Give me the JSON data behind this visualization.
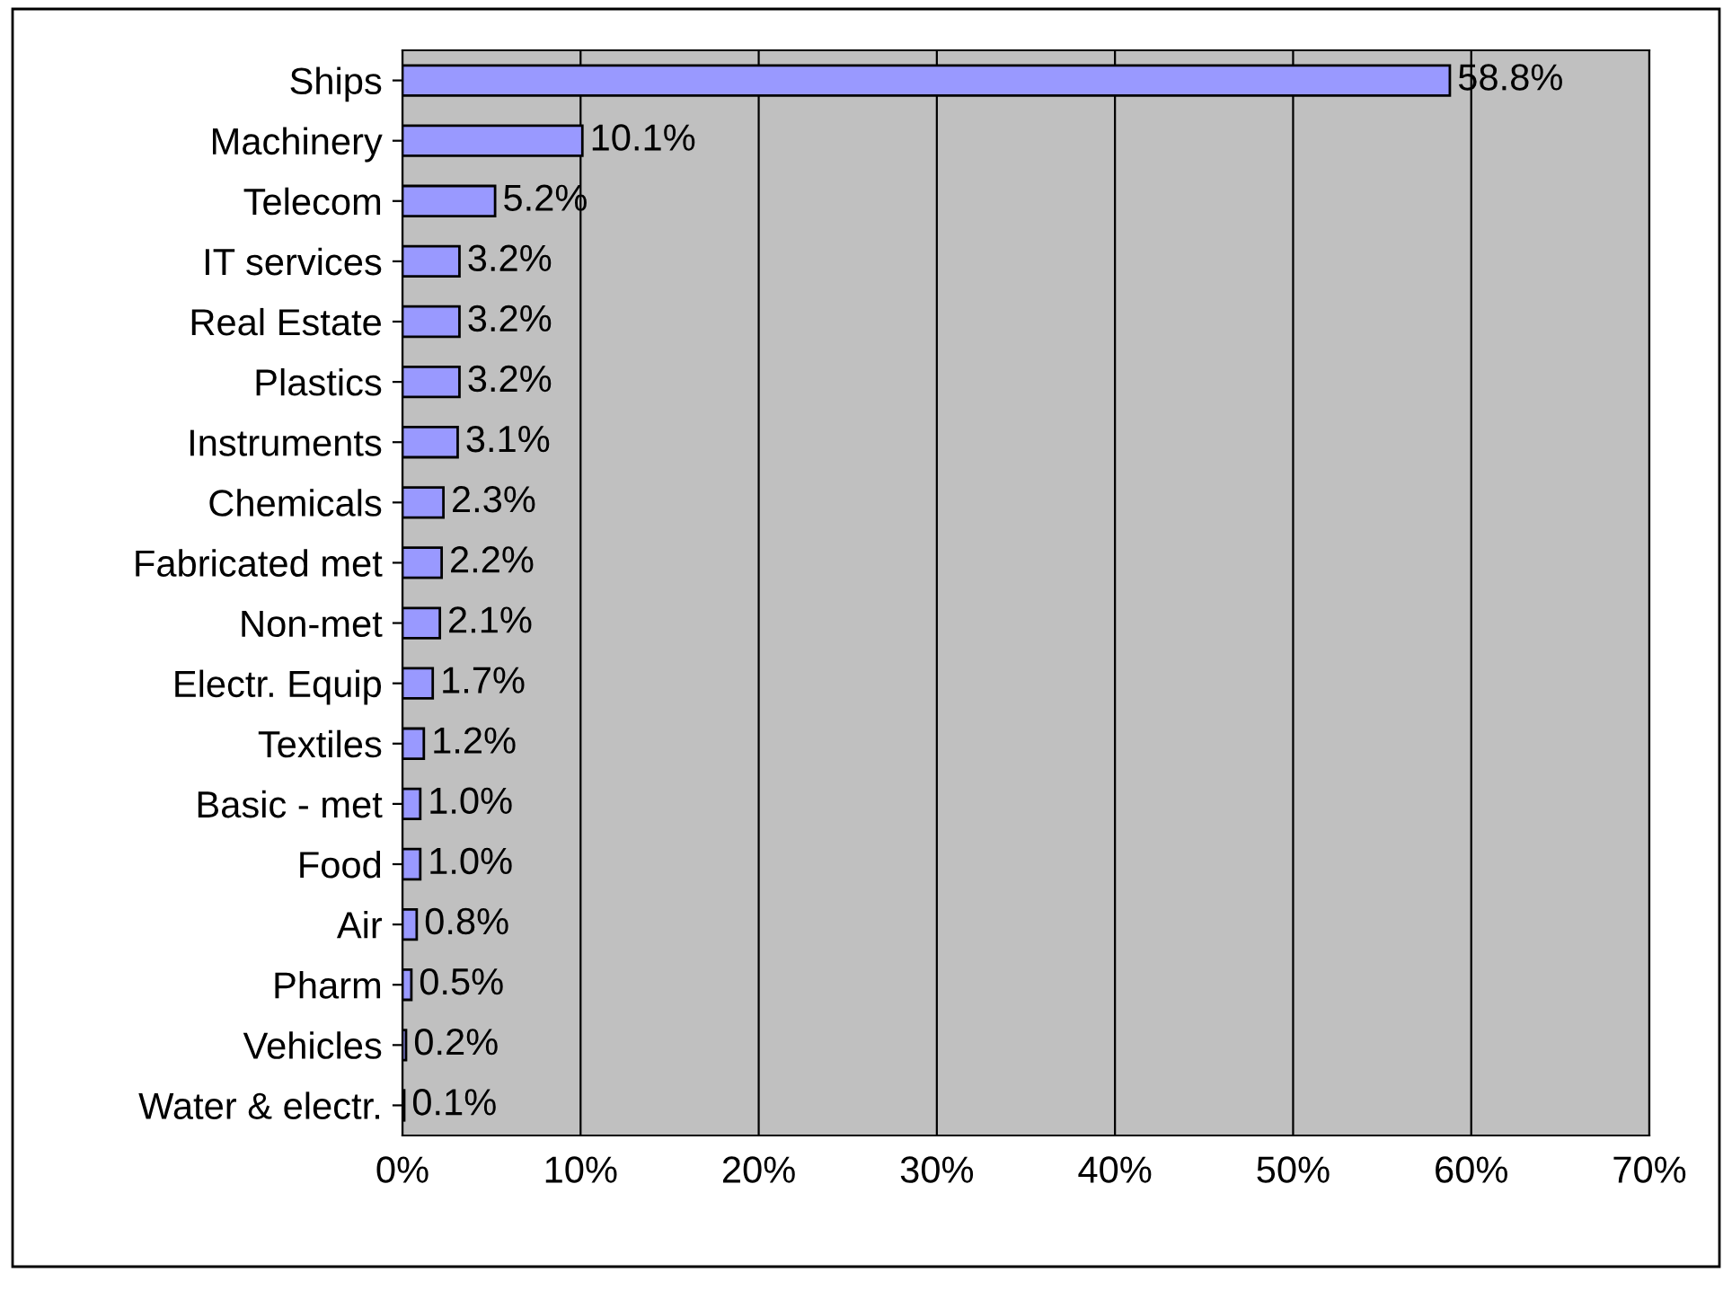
{
  "chart_data": {
    "type": "bar",
    "orientation": "horizontal",
    "categories": [
      "Ships",
      "Machinery",
      "Telecom",
      "IT services",
      "Real Estate",
      "Plastics",
      "Instruments",
      "Chemicals",
      "Fabricated met",
      "Non-met",
      "Electr. Equip",
      "Textiles",
      "Basic - met",
      "Food",
      "Air",
      "Pharm",
      "Vehicles",
      "Water & electr."
    ],
    "values": [
      58.8,
      10.1,
      5.2,
      3.2,
      3.2,
      3.2,
      3.1,
      2.3,
      2.2,
      2.1,
      1.7,
      1.2,
      1.0,
      1.0,
      0.8,
      0.5,
      0.2,
      0.1
    ],
    "value_labels": [
      "58.8%",
      "10.1%",
      "5.2%",
      "3.2%",
      "3.2%",
      "3.2%",
      "3.1%",
      "2.3%",
      "2.2%",
      "2.1%",
      "1.7%",
      "1.2%",
      "1.0%",
      "1.0%",
      "0.8%",
      "0.5%",
      "0.2%",
      "0.1%"
    ],
    "color": "#9999ff",
    "xlim": [
      0,
      70
    ],
    "xticks": [
      {
        "value": 0,
        "label": "0%"
      },
      {
        "value": 10,
        "label": "10%"
      },
      {
        "value": 20,
        "label": "20%"
      },
      {
        "value": 30,
        "label": "30%"
      },
      {
        "value": 40,
        "label": "40%"
      },
      {
        "value": 50,
        "label": "50%"
      },
      {
        "value": 60,
        "label": "60%"
      },
      {
        "value": 70,
        "label": "70%"
      }
    ],
    "grid": "x",
    "legend": false
  }
}
